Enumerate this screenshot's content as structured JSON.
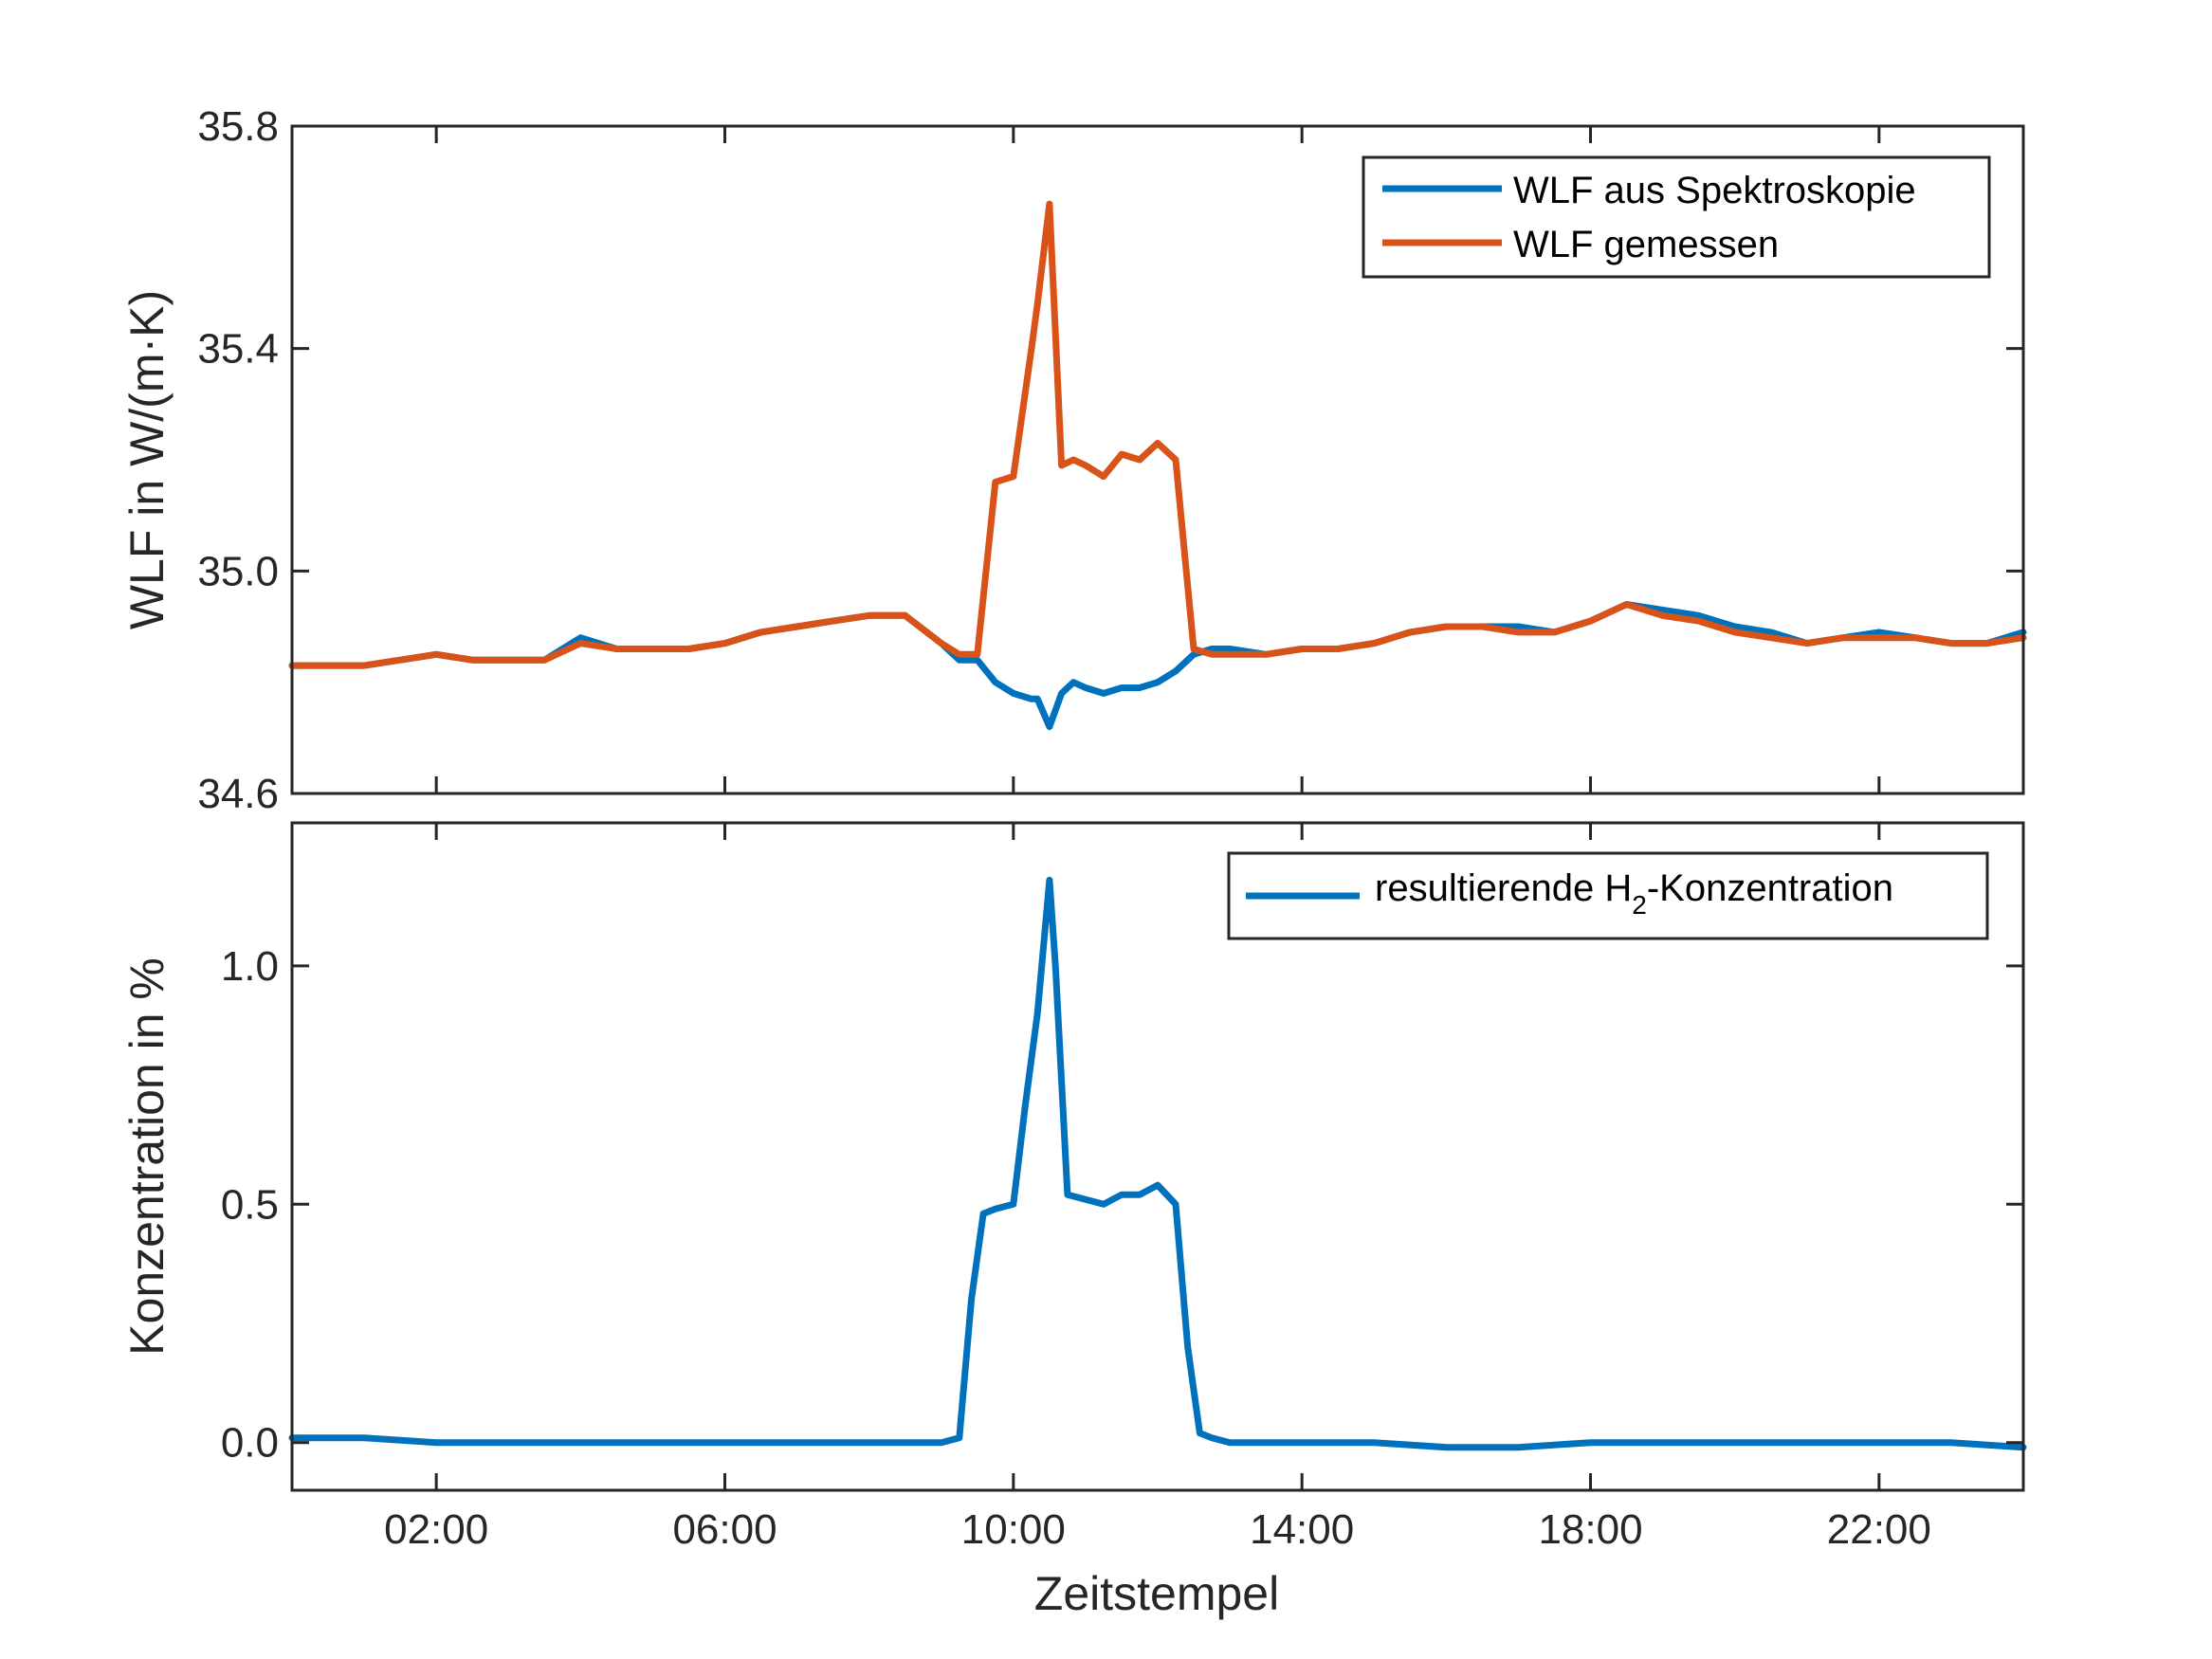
{
  "chart_data": [
    {
      "type": "line",
      "xlabel": "",
      "ylabel": "WLF in W/(m·K)",
      "xlim": [
        "00:00",
        "24:00"
      ],
      "ylim": [
        34.6,
        35.8
      ],
      "yticks": [
        "34.6",
        "35.0",
        "35.4",
        "35.8"
      ],
      "grid": false,
      "legend_placement": "top-right",
      "x": [
        "00:00",
        "00:30",
        "01:00",
        "01:30",
        "02:00",
        "02:30",
        "03:00",
        "03:30",
        "04:00",
        "04:30",
        "05:00",
        "05:30",
        "06:00",
        "06:30",
        "07:00",
        "07:30",
        "08:00",
        "08:30",
        "09:00",
        "09:15",
        "09:30",
        "09:45",
        "10:00",
        "10:15",
        "10:20",
        "10:30",
        "10:40",
        "10:50",
        "11:00",
        "11:15",
        "11:30",
        "11:45",
        "12:00",
        "12:15",
        "12:30",
        "12:45",
        "13:00",
        "13:30",
        "14:00",
        "14:30",
        "15:00",
        "15:30",
        "16:00",
        "16:30",
        "17:00",
        "17:30",
        "18:00",
        "18:30",
        "19:00",
        "19:30",
        "20:00",
        "20:30",
        "21:00",
        "21:30",
        "22:00",
        "22:30",
        "23:00",
        "23:30",
        "24:00"
      ],
      "series": [
        {
          "name": "WLF aus Spektroskopie",
          "color": "#0072bd",
          "values": [
            34.83,
            34.83,
            34.83,
            34.84,
            34.85,
            34.84,
            34.84,
            34.84,
            34.88,
            34.86,
            34.86,
            34.86,
            34.87,
            34.89,
            34.9,
            34.91,
            34.92,
            34.92,
            34.87,
            34.84,
            34.84,
            34.8,
            34.78,
            34.77,
            34.77,
            34.72,
            34.78,
            34.8,
            34.79,
            34.78,
            34.79,
            34.79,
            34.8,
            34.82,
            34.85,
            34.86,
            34.86,
            34.85,
            34.86,
            34.86,
            34.87,
            34.89,
            34.9,
            34.9,
            34.9,
            34.89,
            34.91,
            34.94,
            34.93,
            34.92,
            34.9,
            34.89,
            34.87,
            34.88,
            34.89,
            34.88,
            34.87,
            34.87,
            34.89
          ]
        },
        {
          "name": "WLF gemessen",
          "color": "#d95319",
          "values": [
            34.83,
            34.83,
            34.83,
            34.84,
            34.85,
            34.84,
            34.84,
            34.84,
            34.87,
            34.86,
            34.86,
            34.86,
            34.87,
            34.89,
            34.9,
            34.91,
            34.92,
            34.92,
            34.87,
            34.85,
            34.85,
            35.16,
            35.17,
            35.4,
            35.48,
            35.66,
            35.19,
            35.2,
            35.19,
            35.17,
            35.21,
            35.2,
            35.23,
            35.2,
            34.86,
            34.85,
            34.85,
            34.85,
            34.86,
            34.86,
            34.87,
            34.89,
            34.9,
            34.9,
            34.89,
            34.89,
            34.91,
            34.94,
            34.92,
            34.91,
            34.89,
            34.88,
            34.87,
            34.88,
            34.88,
            34.88,
            34.87,
            34.87,
            34.88
          ]
        }
      ]
    },
    {
      "type": "line",
      "xlabel": "Zeitstempel",
      "ylabel": "Konzentration in %",
      "xlim": [
        "00:00",
        "24:00"
      ],
      "ylim": [
        -0.1,
        1.3
      ],
      "yticks": [
        "0.0",
        "0.5",
        "1.0"
      ],
      "xticks": [
        "02:00",
        "06:00",
        "10:00",
        "14:00",
        "18:00",
        "22:00"
      ],
      "grid": false,
      "legend_placement": "top-right",
      "legend_text": "resultierende H",
      "legend_subscript": "2",
      "legend_suffix": "-Konzentration",
      "x": [
        "00:00",
        "01:00",
        "02:00",
        "03:00",
        "04:00",
        "05:00",
        "06:00",
        "07:00",
        "08:00",
        "09:00",
        "09:15",
        "09:25",
        "09:35",
        "09:45",
        "10:00",
        "10:10",
        "10:20",
        "10:30",
        "10:35",
        "10:45",
        "11:00",
        "11:15",
        "11:30",
        "11:45",
        "12:00",
        "12:15",
        "12:25",
        "12:35",
        "12:45",
        "13:00",
        "14:00",
        "15:00",
        "16:00",
        "17:00",
        "18:00",
        "19:00",
        "20:00",
        "21:00",
        "22:00",
        "23:00",
        "24:00"
      ],
      "series": [
        {
          "name": "resultierende H2-Konzentration",
          "color": "#0072bd",
          "values": [
            0.01,
            0.01,
            0.0,
            0.0,
            0.0,
            0.0,
            0.0,
            0.0,
            0.0,
            0.0,
            0.01,
            0.3,
            0.48,
            0.49,
            0.5,
            0.71,
            0.9,
            1.18,
            1.0,
            0.52,
            0.51,
            0.5,
            0.52,
            0.52,
            0.54,
            0.5,
            0.2,
            0.02,
            0.01,
            0.0,
            0.0,
            0.0,
            -0.01,
            -0.01,
            0.0,
            0.0,
            0.0,
            0.0,
            0.0,
            0.0,
            -0.01
          ]
        }
      ]
    }
  ]
}
